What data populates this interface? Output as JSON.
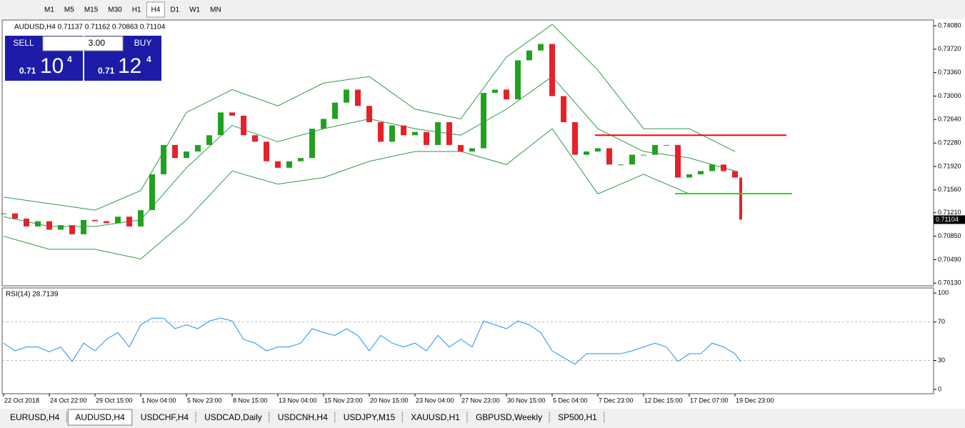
{
  "toolbar": {
    "timeframes": [
      "M1",
      "M5",
      "M15",
      "M30",
      "H1",
      "H4",
      "D1",
      "W1",
      "MN"
    ],
    "active_index": 5
  },
  "trade_panel": {
    "sell": "SELL",
    "lot": "3.00",
    "buy": "BUY",
    "bid": {
      "big": "0.71",
      "main": "10",
      "pip": "4"
    },
    "ask": {
      "big": "0.71",
      "main": "12",
      "pip": "4"
    }
  },
  "chart_data": [
    {
      "type": "candlestick",
      "title": "AUDUSD,H4  0.71137 0.71162 0.70863 0.71104",
      "x": [
        0,
        4,
        8,
        12,
        16,
        20,
        24,
        28,
        32,
        36,
        40,
        44,
        48,
        52,
        56,
        60,
        64,
        68,
        72,
        76,
        80,
        84,
        88,
        92,
        96,
        100,
        104,
        108,
        112,
        116,
        120,
        124,
        128,
        132,
        136,
        140,
        144,
        148,
        152,
        156,
        160,
        164,
        168,
        172,
        176,
        180,
        184,
        188,
        192,
        196,
        200,
        204,
        208,
        212,
        216,
        220,
        224,
        228,
        232,
        236,
        240,
        244,
        248,
        252,
        256,
        258
      ],
      "values": [
        0.712,
        0.7112,
        0.71,
        0.7108,
        0.7095,
        0.7102,
        0.7088,
        0.711,
        0.7108,
        0.7105,
        0.7115,
        0.71,
        0.7125,
        0.718,
        0.7225,
        0.7205,
        0.7215,
        0.7225,
        0.724,
        0.7275,
        0.727,
        0.724,
        0.723,
        0.72,
        0.719,
        0.72,
        0.7205,
        0.725,
        0.7265,
        0.729,
        0.731,
        0.7285,
        0.726,
        0.723,
        0.7255,
        0.724,
        0.7245,
        0.7225,
        0.726,
        0.7225,
        0.7215,
        0.722,
        0.7305,
        0.731,
        0.7295,
        0.7355,
        0.737,
        0.738,
        0.73,
        0.726,
        0.721,
        0.7215,
        0.722,
        0.7195,
        0.7195,
        0.721,
        0.721,
        0.7225,
        0.7225,
        0.7175,
        0.718,
        0.7185,
        0.7195,
        0.7185,
        0.7175,
        0.71104
      ],
      "up_color": "#21a121",
      "down_color": "#e8202a",
      "bands": {
        "x": [
          0,
          16,
          32,
          48,
          64,
          80,
          96,
          112,
          128,
          144,
          160,
          176,
          192,
          208,
          224,
          240,
          256
        ],
        "color": "#2e9a4a",
        "series": [
          {
            "values": [
              0.7145,
              0.7135,
              0.7125,
              0.7155,
              0.7275,
              0.731,
              0.7285,
              0.732,
              0.733,
              0.728,
              0.7265,
              0.736,
              0.741,
              0.734,
              0.725,
              0.725,
              0.7215
            ]
          },
          {
            "values": [
              0.7115,
              0.71,
              0.71,
              0.711,
              0.719,
              0.7255,
              0.723,
              0.725,
              0.7265,
              0.725,
              0.724,
              0.728,
              0.733,
              0.725,
              0.7215,
              0.7205,
              0.7185
            ]
          },
          {
            "values": [
              0.7085,
              0.7065,
              0.7065,
              0.705,
              0.711,
              0.7185,
              0.7165,
              0.7175,
              0.72,
              0.7215,
              0.7215,
              0.7195,
              0.725,
              0.715,
              0.718,
              0.715,
              0.715
            ]
          }
        ]
      },
      "levels": [
        {
          "value": 0.724,
          "x": [
            207,
            274
          ],
          "color": "#ff0000"
        },
        {
          "value": 0.71503,
          "x": [
            235,
            276
          ],
          "color": "#22dd22"
        }
      ],
      "last_price": 0.71104,
      "xlim": [
        -0.5,
        325.5
      ],
      "ylim": [
        0.70089,
        0.74168
      ],
      "yticks": [
        {
          "value": 0.7408,
          "label": "0.74080"
        },
        {
          "value": 0.7372,
          "label": "0.73720"
        },
        {
          "value": 0.7336,
          "label": "0.73360"
        },
        {
          "value": 0.73,
          "label": "0.73000"
        },
        {
          "value": 0.7264,
          "label": "0.72640"
        },
        {
          "value": 0.7228,
          "label": "0.72280"
        },
        {
          "value": 0.7192,
          "label": "0.71920"
        },
        {
          "value": 0.7156,
          "label": "0.71560"
        },
        {
          "value": 0.7121,
          "label": "0.71210"
        },
        {
          "value": 0.7085,
          "label": "0.70850"
        },
        {
          "value": 0.7049,
          "label": "0.70490"
        },
        {
          "value": 0.7013,
          "label": "0.70130"
        }
      ]
    },
    {
      "type": "line",
      "title": "RSI(14) 28.7139",
      "x": [
        0,
        4,
        8,
        12,
        16,
        20,
        24,
        28,
        32,
        36,
        40,
        44,
        48,
        52,
        56,
        60,
        64,
        68,
        72,
        76,
        80,
        84,
        88,
        92,
        96,
        100,
        104,
        108,
        112,
        116,
        120,
        124,
        128,
        132,
        136,
        140,
        144,
        148,
        152,
        156,
        160,
        164,
        168,
        172,
        176,
        180,
        184,
        188,
        192,
        196,
        200,
        204,
        208,
        212,
        216,
        220,
        224,
        228,
        232,
        236,
        240,
        244,
        248,
        252,
        256,
        258
      ],
      "series": [
        {
          "color": "#1e90ff",
          "values": [
            48,
            40,
            44,
            44,
            39,
            44,
            29,
            48,
            40,
            52,
            59,
            44,
            67,
            74,
            74,
            63,
            67,
            63,
            71,
            74,
            71,
            52,
            48,
            40,
            44,
            44,
            48,
            63,
            59,
            56,
            63,
            56,
            40,
            56,
            48,
            44,
            48,
            40,
            56,
            44,
            52,
            44,
            71,
            67,
            63,
            71,
            67,
            59,
            40,
            33,
            26,
            37,
            37,
            37,
            37,
            40,
            44,
            48,
            44,
            29,
            37,
            37,
            48,
            44,
            37,
            28.7139
          ]
        }
      ],
      "xlim": [
        -0.5,
        325.5
      ],
      "ylim": [
        -4.5,
        105.3
      ],
      "yticks": [
        100,
        70,
        30,
        0
      ],
      "dashed_ticks": [
        70,
        30
      ],
      "xticks": [
        {
          "value": 0,
          "label": "22 Oct 2018"
        },
        {
          "value": 16,
          "label": "24 Oct 22:00"
        },
        {
          "value": 32,
          "label": "29 Oct 15:00"
        },
        {
          "value": 48,
          "label": "1 Nov 04:00"
        },
        {
          "value": 64,
          "label": "5 Nov 23:00"
        },
        {
          "value": 80,
          "label": "8 Nov 15:00"
        },
        {
          "value": 96,
          "label": "13 Nov 04:00"
        },
        {
          "value": 112,
          "label": "15 Nov 23:00"
        },
        {
          "value": 128,
          "label": "20 Nov 15:00"
        },
        {
          "value": 144,
          "label": "23 Nov 04:00"
        },
        {
          "value": 160,
          "label": "27 Nov 23:00"
        },
        {
          "value": 176,
          "label": "30 Nov 15:00"
        },
        {
          "value": 192,
          "label": "5 Dec 04:00"
        },
        {
          "value": 208,
          "label": "7 Dec 23:00"
        },
        {
          "value": 224,
          "label": "12 Dec 15:00"
        },
        {
          "value": 240,
          "label": "17 Dec 07:00"
        },
        {
          "value": 256,
          "label": "19 Dec 23:00"
        }
      ]
    }
  ],
  "tabs": [
    "EURUSD,H4",
    "AUDUSD,H4",
    "USDCHF,H4",
    "USDCAD,Daily",
    "USDCNH,H4",
    "USDJPY,M15",
    "XAUUSD,H1",
    "GBPUSD,Weekly",
    "SP500,H1"
  ],
  "active_tab_index": 1
}
